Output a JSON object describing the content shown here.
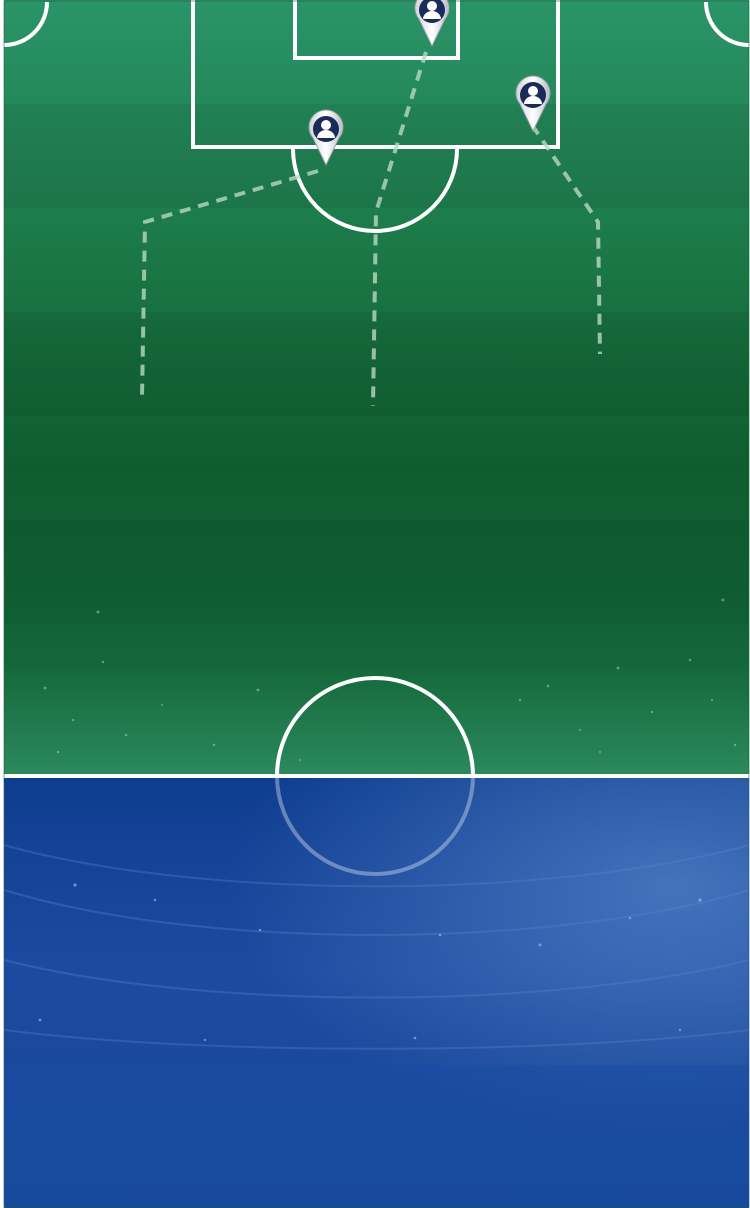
{
  "colors": {
    "pitch_dark": "#0d5a30",
    "pitch_light": "#22855a",
    "stadium_top": "#0e3c8e",
    "stadium_bottom": "#1848a0",
    "line": "#ffffff",
    "route": "#b8d8c4",
    "marker_head": "#1a2a5a"
  },
  "players": [
    {
      "id": "player-1",
      "icon": "player-location-marker-icon",
      "route": "route-1"
    },
    {
      "id": "player-2",
      "icon": "player-location-marker-icon",
      "route": "route-2"
    },
    {
      "id": "player-3",
      "icon": "player-location-marker-icon",
      "route": "route-3"
    }
  ]
}
